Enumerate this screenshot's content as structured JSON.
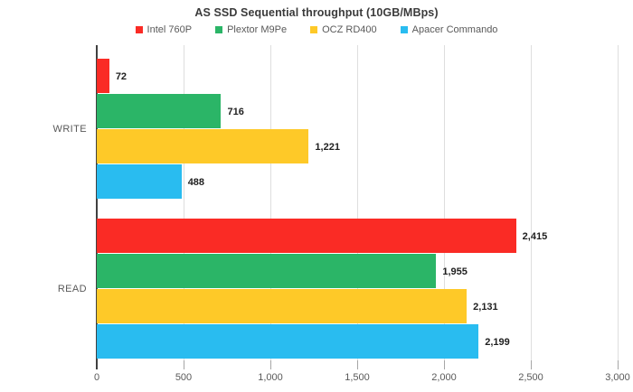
{
  "title": "AS SSD Sequential throughput (10GB/MBps)",
  "chart_data": {
    "type": "bar",
    "orientation": "horizontal",
    "title": "AS SSD Sequential throughput (10GB/MBps)",
    "categories": [
      "WRITE",
      "READ"
    ],
    "series": [
      {
        "name": "Intel 760P",
        "color": "#fa2b25",
        "values": [
          72,
          2415
        ],
        "value_labels": [
          "72",
          "2,415"
        ]
      },
      {
        "name": "Plextor M9Pe",
        "color": "#2bb567",
        "values": [
          716,
          1955
        ],
        "value_labels": [
          "716",
          "1,955"
        ]
      },
      {
        "name": "OCZ RD400",
        "color": "#fec928",
        "values": [
          1221,
          2131
        ],
        "value_labels": [
          "1,221",
          "2,131"
        ]
      },
      {
        "name": "Apacer Commando",
        "color": "#29bcf0",
        "values": [
          488,
          2199
        ],
        "value_labels": [
          "488",
          "2,199"
        ]
      }
    ],
    "xlim": [
      0,
      3000
    ],
    "x_ticks": [
      {
        "value": 0,
        "label": "0"
      },
      {
        "value": 500,
        "label": "500"
      },
      {
        "value": 1000,
        "label": "1,000"
      },
      {
        "value": 1500,
        "label": "1,500"
      },
      {
        "value": 2000,
        "label": "2,000"
      },
      {
        "value": 2500,
        "label": "2,500"
      },
      {
        "value": 3000,
        "label": "3,000"
      }
    ],
    "grid": true,
    "legend_position": "top",
    "colors": {
      "axis": "#404040",
      "gridline": "#dedede",
      "tick": "#a6a6a6",
      "axis_text": "#595959",
      "value_label_text": "#1f1f1f",
      "title_text": "#3b3b3b"
    }
  }
}
